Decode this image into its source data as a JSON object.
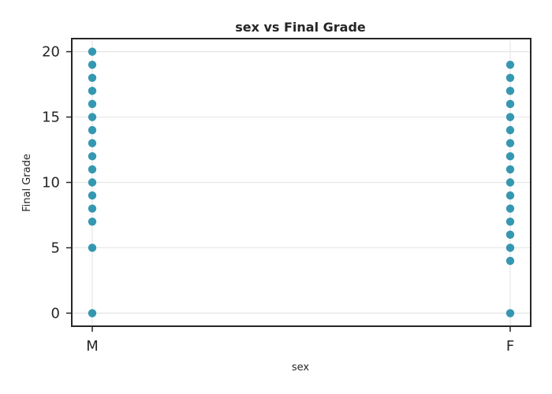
{
  "chart_data": {
    "type": "scatter",
    "title": "sex vs Final Grade",
    "xlabel": "sex",
    "ylabel": "Final Grade",
    "categories": [
      "M",
      "F"
    ],
    "ylim": [
      -1,
      21
    ],
    "yticks": [
      0,
      5,
      10,
      15,
      20
    ],
    "grid": true,
    "point_color": "#1a8aa6",
    "points": [
      {
        "x": "M",
        "y": [
          0,
          5,
          7,
          8,
          9,
          10,
          11,
          12,
          13,
          14,
          15,
          16,
          17,
          18,
          19,
          20
        ]
      },
      {
        "x": "F",
        "y": [
          0,
          4,
          5,
          6,
          7,
          8,
          9,
          10,
          11,
          12,
          13,
          14,
          15,
          16,
          17,
          18,
          19
        ]
      }
    ]
  }
}
